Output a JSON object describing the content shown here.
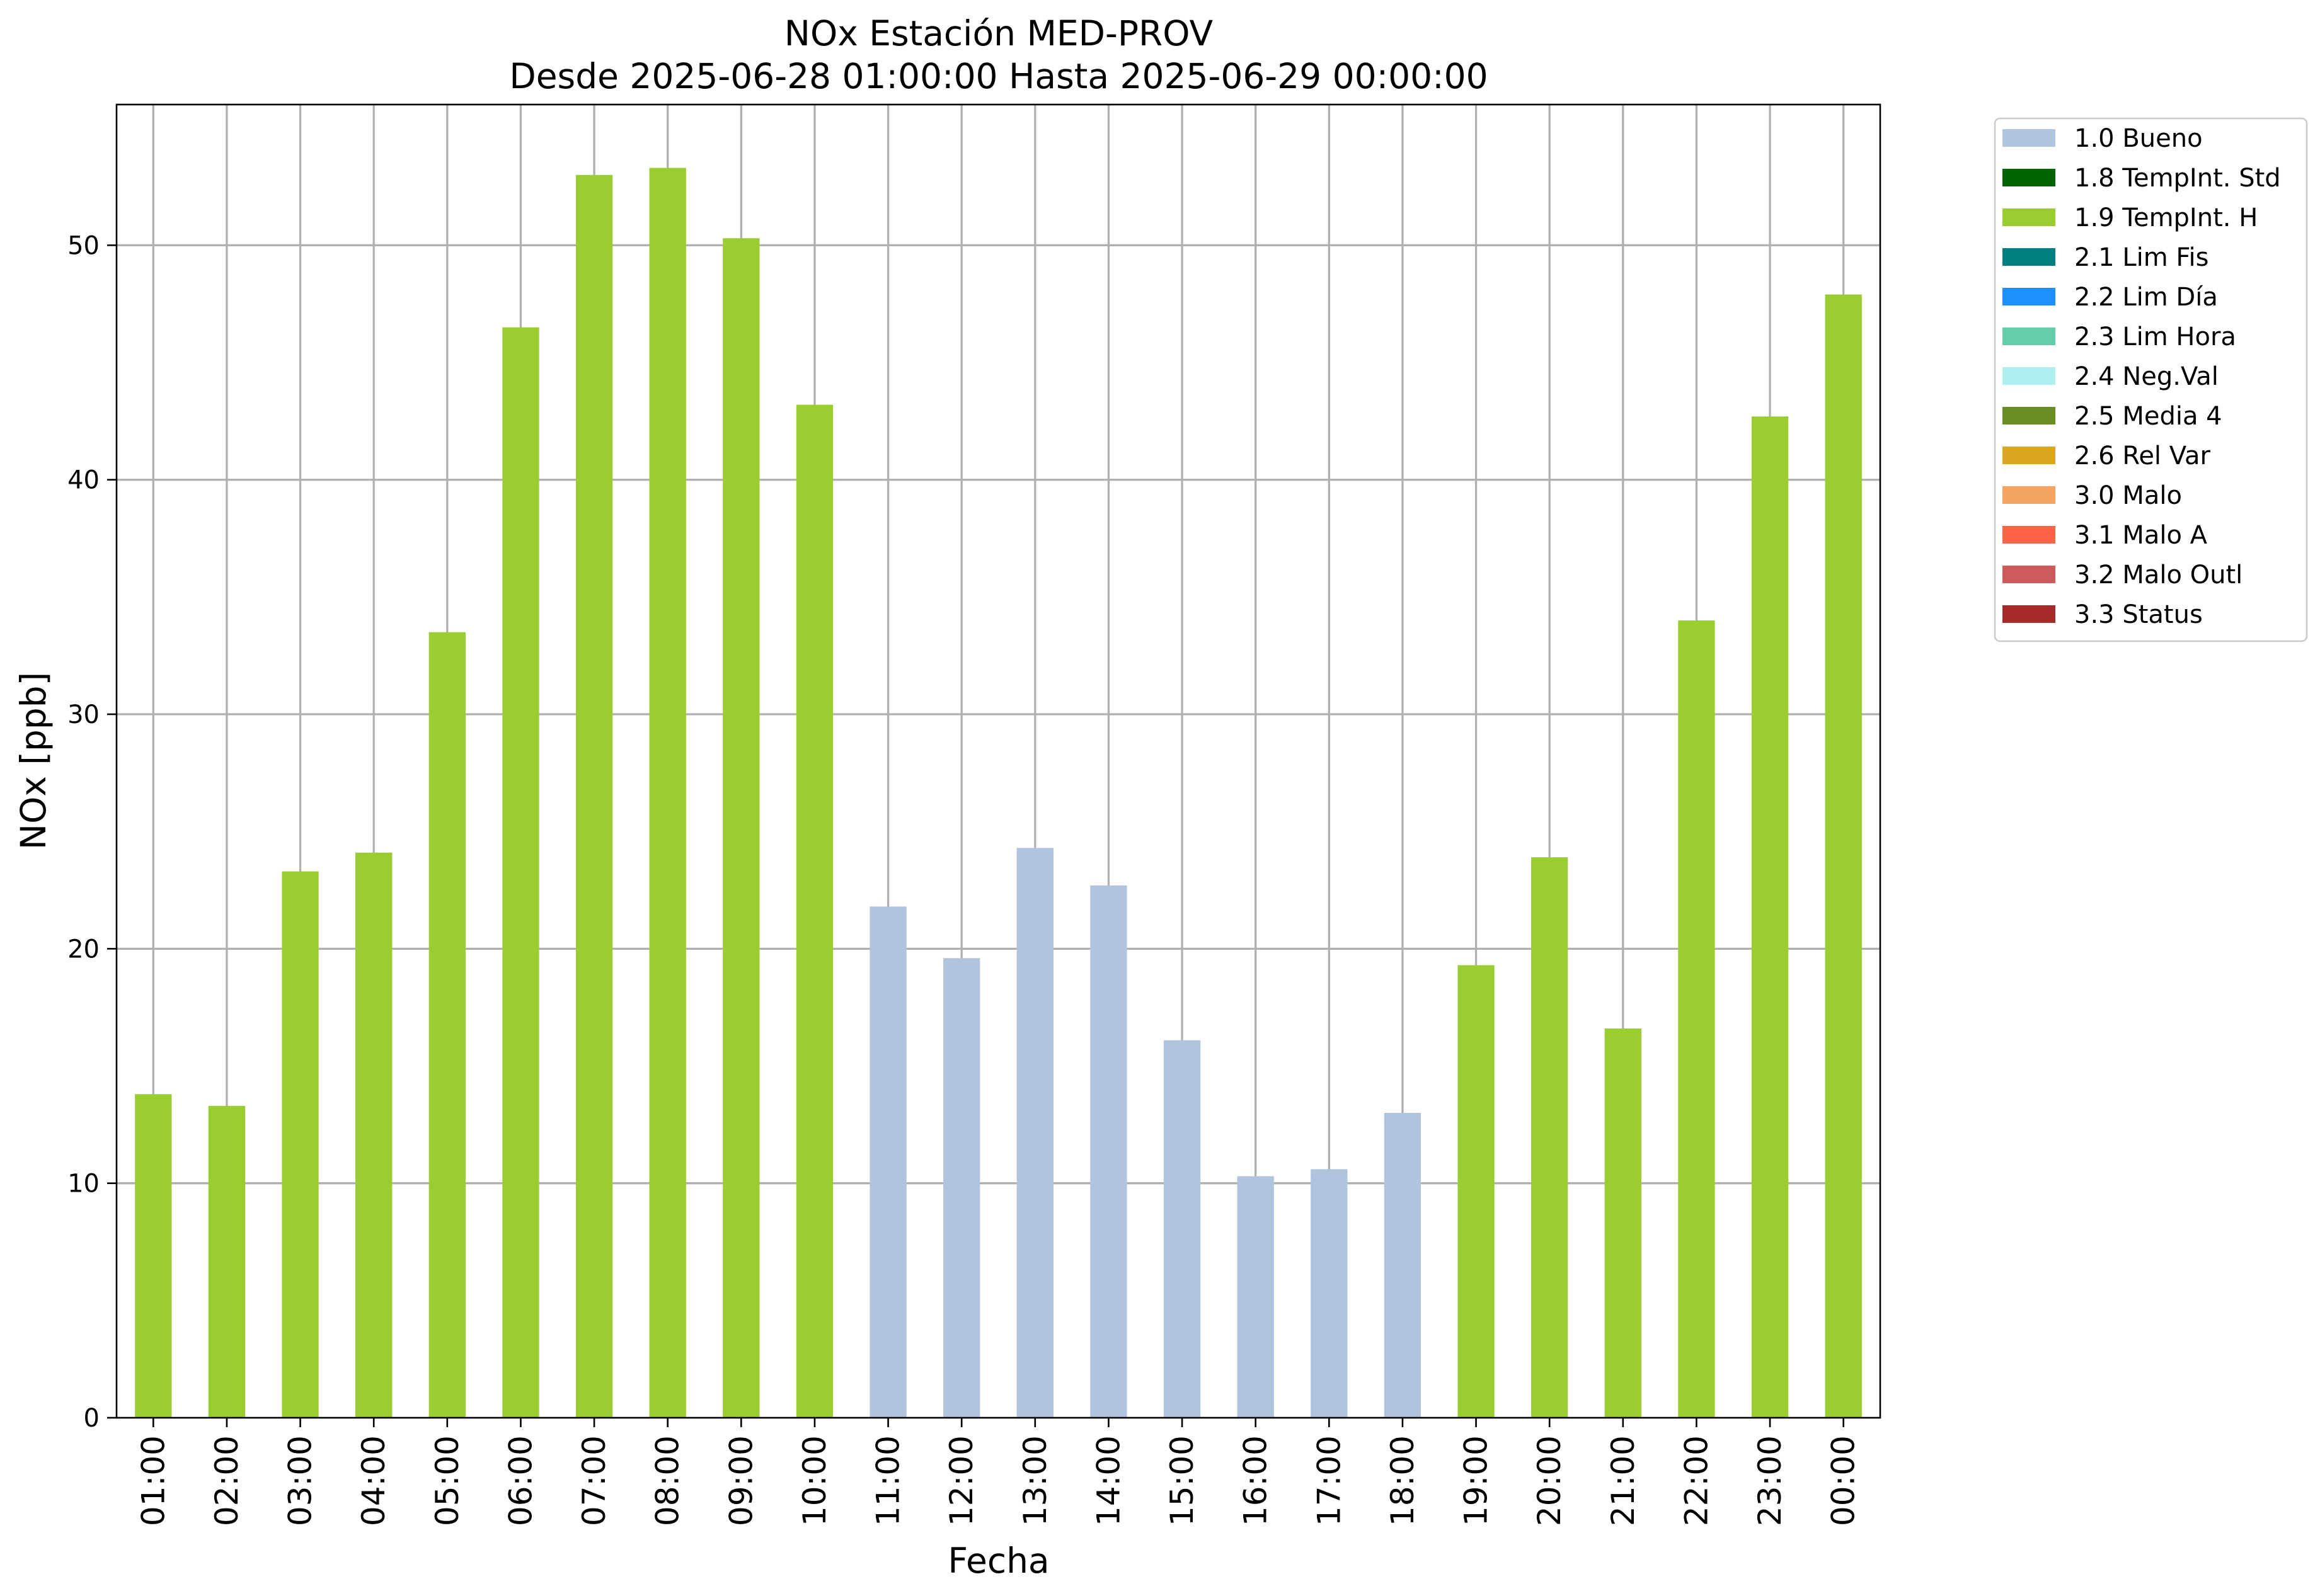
{
  "chart_data": {
    "type": "bar",
    "title": "NOx Estación MED-PROV",
    "subtitle": "Desde 2025-06-28 01:00:00 Hasta 2025-06-29 00:00:00",
    "xlabel": "Fecha",
    "ylabel": "NOx [ppb]",
    "ylim": [
      0,
      56
    ],
    "yticks": [
      0,
      10,
      20,
      30,
      40,
      50
    ],
    "grid": true,
    "legend_position": "outside-top-right",
    "categories": [
      "01:00",
      "02:00",
      "03:00",
      "04:00",
      "05:00",
      "06:00",
      "07:00",
      "08:00",
      "09:00",
      "10:00",
      "11:00",
      "12:00",
      "13:00",
      "14:00",
      "15:00",
      "16:00",
      "17:00",
      "18:00",
      "19:00",
      "20:00",
      "21:00",
      "22:00",
      "23:00",
      "00:00"
    ],
    "values": [
      13.8,
      13.3,
      23.3,
      24.1,
      33.5,
      46.5,
      53.0,
      53.3,
      50.3,
      43.2,
      21.8,
      19.6,
      24.3,
      22.7,
      16.1,
      10.3,
      10.6,
      13.0,
      19.3,
      23.9,
      16.6,
      34.0,
      42.7,
      47.9
    ],
    "flags": [
      "1.9",
      "1.9",
      "1.9",
      "1.9",
      "1.9",
      "1.9",
      "1.9",
      "1.9",
      "1.9",
      "1.9",
      "1.0",
      "1.0",
      "1.0",
      "1.0",
      "1.0",
      "1.0",
      "1.0",
      "1.0",
      "1.9",
      "1.9",
      "1.9",
      "1.9",
      "1.9",
      "1.9"
    ],
    "legend": [
      {
        "code": "1.0",
        "label": "1.0 Bueno",
        "color": "#b0c4de"
      },
      {
        "code": "1.8",
        "label": "1.8 TempInt. Std",
        "color": "#006400"
      },
      {
        "code": "1.9",
        "label": "1.9 TempInt. H",
        "color": "#9acd32"
      },
      {
        "code": "2.1",
        "label": "2.1 Lim Fis",
        "color": "#008080"
      },
      {
        "code": "2.2",
        "label": "2.2 Lim Día",
        "color": "#1e90ff"
      },
      {
        "code": "2.3",
        "label": "2.3 Lim Hora",
        "color": "#66cdaa"
      },
      {
        "code": "2.4",
        "label": "2.4 Neg.Val",
        "color": "#afeeee"
      },
      {
        "code": "2.5",
        "label": "2.5 Media 4",
        "color": "#6b8e23"
      },
      {
        "code": "2.6",
        "label": "2.6 Rel Var",
        "color": "#daa520"
      },
      {
        "code": "3.0",
        "label": "3.0 Malo",
        "color": "#f4a460"
      },
      {
        "code": "3.1",
        "label": "3.1 Malo A",
        "color": "#ff6347"
      },
      {
        "code": "3.2",
        "label": "3.2 Malo Outl",
        "color": "#cd5c5c"
      },
      {
        "code": "3.3",
        "label": "3.3 Status",
        "color": "#a52a2a"
      }
    ]
  }
}
